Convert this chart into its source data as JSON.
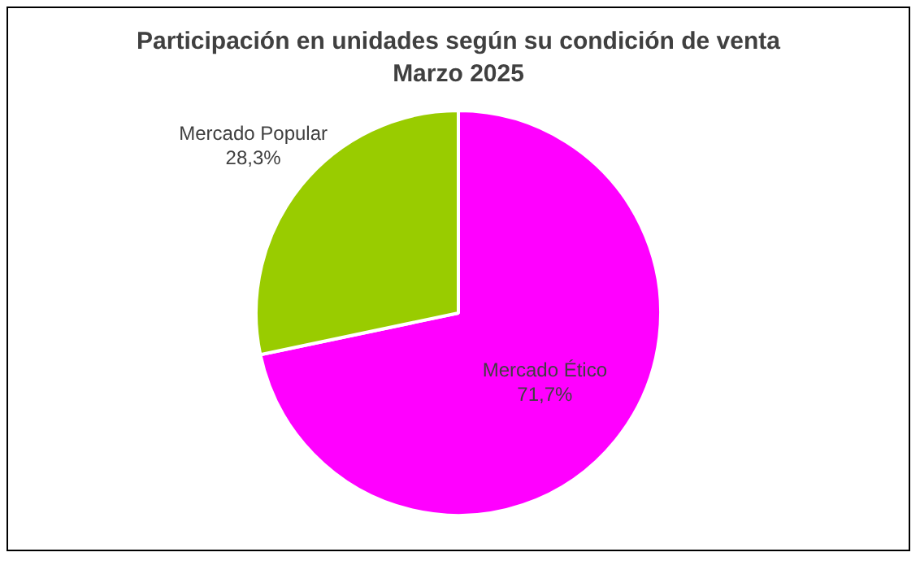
{
  "chart_data": {
    "type": "pie",
    "title": "Participación en unidades según su condición de venta",
    "subtitle": "Marzo 2025",
    "categories": [
      "Mercado Ético",
      "Mercado Popular"
    ],
    "values": [
      71.7,
      28.3
    ],
    "colors": [
      "#ff00ff",
      "#99cc00"
    ],
    "value_labels": [
      "71,7%",
      "28,3%"
    ],
    "legend": false
  }
}
